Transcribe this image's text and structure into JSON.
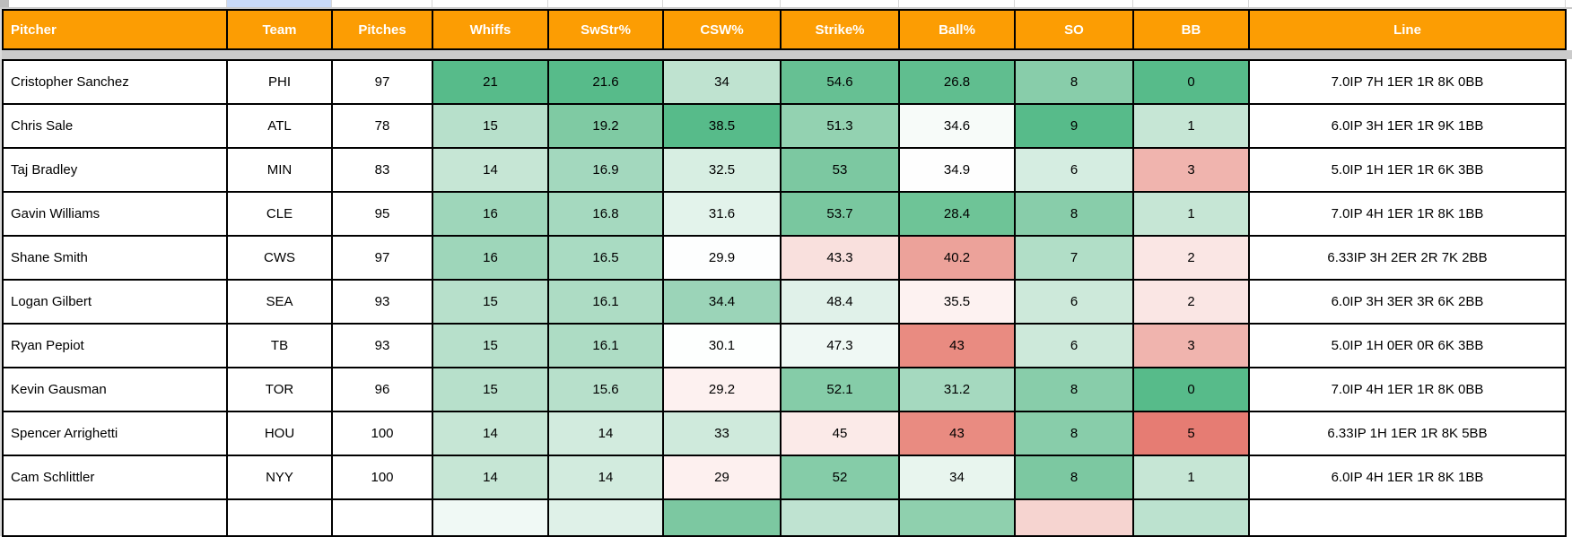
{
  "colors": {
    "header_bg": "#FC9D03",
    "header_text": "#FFFFFF",
    "grid": "#000000",
    "frozen_divider": "#CBCBCB",
    "strip_highlight_blue": "#C9DAF8",
    "strip_line": "#D6D6D6",
    "strip_corner": "#BDBDBD",
    "scale_max_green": "#57BB8A",
    "scale_mid_white": "#FFFFFF",
    "scale_min_red": "#E67C73"
  },
  "table": {
    "columns": [
      "Pitcher",
      "Team",
      "Pitches",
      "Whiffs",
      "SwStr%",
      "CSW%",
      "Strike%",
      "Ball%",
      "SO",
      "BB",
      "Line"
    ],
    "widths": [
      250,
      117,
      112,
      129,
      128,
      131,
      132,
      129,
      132,
      129,
      353
    ],
    "rows": [
      {
        "cells": [
          {
            "v": "Cristopher Sanchez",
            "bg": "#FFFFFF"
          },
          {
            "v": "PHI",
            "bg": "#FFFFFF"
          },
          {
            "v": "97",
            "bg": "#FFFFFF"
          },
          {
            "v": "21",
            "bg": "#57BB8A"
          },
          {
            "v": "21.6",
            "bg": "#57BB8A"
          },
          {
            "v": "34",
            "bg": "#BFE3D0"
          },
          {
            "v": "54.6",
            "bg": "#66C093"
          },
          {
            "v": "26.8",
            "bg": "#60BE8F"
          },
          {
            "v": "8",
            "bg": "#88CDAA"
          },
          {
            "v": "0",
            "bg": "#57BB8A"
          },
          {
            "v": "7.0IP 7H 1ER 1R 8K 0BB",
            "bg": "#FFFFFF"
          }
        ]
      },
      {
        "cells": [
          {
            "v": "Chris Sale",
            "bg": "#FFFFFF"
          },
          {
            "v": "ATL",
            "bg": "#FFFFFF"
          },
          {
            "v": "78",
            "bg": "#FFFFFF"
          },
          {
            "v": "15",
            "bg": "#B7E0CB"
          },
          {
            "v": "19.2",
            "bg": "#7FCAA3"
          },
          {
            "v": "38.5",
            "bg": "#57BB8A"
          },
          {
            "v": "51.3",
            "bg": "#93D2B1"
          },
          {
            "v": "34.6",
            "bg": "#F7FBF9"
          },
          {
            "v": "9",
            "bg": "#57BB8A"
          },
          {
            "v": "1",
            "bg": "#C6E6D5"
          },
          {
            "v": "6.0IP 3H 1ER 1R 9K 1BB",
            "bg": "#FFFFFF"
          }
        ]
      },
      {
        "cells": [
          {
            "v": "Taj Bradley",
            "bg": "#FFFFFF"
          },
          {
            "v": "MIN",
            "bg": "#FFFFFF"
          },
          {
            "v": "83",
            "bg": "#FFFFFF"
          },
          {
            "v": "14",
            "bg": "#C6E6D5"
          },
          {
            "v": "16.9",
            "bg": "#A3D8BE"
          },
          {
            "v": "32.5",
            "bg": "#D7EEE2"
          },
          {
            "v": "53",
            "bg": "#7CC8A1"
          },
          {
            "v": "34.9",
            "bg": "#FEFEFE"
          },
          {
            "v": "6",
            "bg": "#D5EDE1"
          },
          {
            "v": "3",
            "bg": "#F0B4AE"
          },
          {
            "v": "5.0IP 1H 1ER 1R 6K 3BB",
            "bg": "#FFFFFF"
          }
        ]
      },
      {
        "cells": [
          {
            "v": "Gavin Williams",
            "bg": "#FFFFFF"
          },
          {
            "v": "CLE",
            "bg": "#FFFFFF"
          },
          {
            "v": "95",
            "bg": "#FFFFFF"
          },
          {
            "v": "16",
            "bg": "#9ED6BA"
          },
          {
            "v": "16.8",
            "bg": "#A5D9BF"
          },
          {
            "v": "31.6",
            "bg": "#E3F3EB"
          },
          {
            "v": "53.7",
            "bg": "#79C79F"
          },
          {
            "v": "28.4",
            "bg": "#6EC497"
          },
          {
            "v": "8",
            "bg": "#88CDAA"
          },
          {
            "v": "1",
            "bg": "#C6E6D5"
          },
          {
            "v": "7.0IP 4H 1ER 1R 8K 1BB",
            "bg": "#FFFFFF"
          }
        ]
      },
      {
        "cells": [
          {
            "v": "Shane Smith",
            "bg": "#FFFFFF"
          },
          {
            "v": "CWS",
            "bg": "#FFFFFF"
          },
          {
            "v": "97",
            "bg": "#FFFFFF"
          },
          {
            "v": "16",
            "bg": "#9ED6BA"
          },
          {
            "v": "16.5",
            "bg": "#A9DBC2"
          },
          {
            "v": "29.9",
            "bg": "#FDFEFE"
          },
          {
            "v": "43.3",
            "bg": "#F9E0DD"
          },
          {
            "v": "40.2",
            "bg": "#ECA29A"
          },
          {
            "v": "7",
            "bg": "#B1DEC7"
          },
          {
            "v": "2",
            "bg": "#FAE6E4"
          },
          {
            "v": "6.33IP 3H 2ER 2R 7K 2BB",
            "bg": "#FFFFFF"
          }
        ]
      },
      {
        "cells": [
          {
            "v": "Logan Gilbert",
            "bg": "#FFFFFF"
          },
          {
            "v": "SEA",
            "bg": "#FFFFFF"
          },
          {
            "v": "93",
            "bg": "#FFFFFF"
          },
          {
            "v": "15",
            "bg": "#B7E0CB"
          },
          {
            "v": "16.1",
            "bg": "#ADDCC4"
          },
          {
            "v": "34.4",
            "bg": "#9BD4B8"
          },
          {
            "v": "48.4",
            "bg": "#E0F1E9"
          },
          {
            "v": "35.5",
            "bg": "#FDF2F1"
          },
          {
            "v": "6",
            "bg": "#CDE9DA"
          },
          {
            "v": "2",
            "bg": "#FAE6E4"
          },
          {
            "v": "6.0IP 3H 3ER 3R 6K 2BB",
            "bg": "#FFFFFF"
          }
        ]
      },
      {
        "cells": [
          {
            "v": "Ryan Pepiot",
            "bg": "#FFFFFF"
          },
          {
            "v": "TB",
            "bg": "#FFFFFF"
          },
          {
            "v": "93",
            "bg": "#FFFFFF"
          },
          {
            "v": "15",
            "bg": "#B7E0CB"
          },
          {
            "v": "16.1",
            "bg": "#ADDCC4"
          },
          {
            "v": "30.1",
            "bg": "#FDFFFE"
          },
          {
            "v": "47.3",
            "bg": "#EFF8F4"
          },
          {
            "v": "43",
            "bg": "#E98B81"
          },
          {
            "v": "6",
            "bg": "#CDE9DA"
          },
          {
            "v": "3",
            "bg": "#F0B4AE"
          },
          {
            "v": "5.0IP 1H 0ER 0R 6K 3BB",
            "bg": "#FFFFFF"
          }
        ]
      },
      {
        "cells": [
          {
            "v": "Kevin Gausman",
            "bg": "#FFFFFF"
          },
          {
            "v": "TOR",
            "bg": "#FFFFFF"
          },
          {
            "v": "96",
            "bg": "#FFFFFF"
          },
          {
            "v": "15",
            "bg": "#B7E0CB"
          },
          {
            "v": "15.6",
            "bg": "#B7E0CB"
          },
          {
            "v": "29.2",
            "bg": "#FDF1F0"
          },
          {
            "v": "52.1",
            "bg": "#85CCA8"
          },
          {
            "v": "31.2",
            "bg": "#A5D9BF"
          },
          {
            "v": "8",
            "bg": "#88CDAA"
          },
          {
            "v": "0",
            "bg": "#57BB8A"
          },
          {
            "v": "7.0IP 4H 1ER 1R 8K 0BB",
            "bg": "#FFFFFF"
          }
        ]
      },
      {
        "cells": [
          {
            "v": "Spencer Arrighetti",
            "bg": "#FFFFFF"
          },
          {
            "v": "HOU",
            "bg": "#FFFFFF"
          },
          {
            "v": "100",
            "bg": "#FFFFFF"
          },
          {
            "v": "14",
            "bg": "#C6E6D5"
          },
          {
            "v": "14",
            "bg": "#D2EBDE"
          },
          {
            "v": "33",
            "bg": "#CFEADC"
          },
          {
            "v": "45",
            "bg": "#FBEAE8"
          },
          {
            "v": "43",
            "bg": "#E98B81"
          },
          {
            "v": "8",
            "bg": "#88CDAA"
          },
          {
            "v": "5",
            "bg": "#E67C73"
          },
          {
            "v": "6.33IP 1H 1ER 1R 8K 5BB",
            "bg": "#FFFFFF"
          }
        ]
      },
      {
        "cells": [
          {
            "v": "Cam Schlittler",
            "bg": "#FFFFFF"
          },
          {
            "v": "NYY",
            "bg": "#FFFFFF"
          },
          {
            "v": "100",
            "bg": "#FFFFFF"
          },
          {
            "v": "14",
            "bg": "#C6E6D5"
          },
          {
            "v": "14",
            "bg": "#D2EBDE"
          },
          {
            "v": "29",
            "bg": "#FDF0EF"
          },
          {
            "v": "52",
            "bg": "#85CCA8"
          },
          {
            "v": "34",
            "bg": "#E8F5EE"
          },
          {
            "v": "8",
            "bg": "#7CC8A1"
          },
          {
            "v": "1",
            "bg": "#C6E6D5"
          },
          {
            "v": "6.0IP 4H 1ER 1R 8K 1BB",
            "bg": "#FFFFFF"
          }
        ]
      }
    ],
    "partial_row_colors": [
      "#FFFFFF",
      "#FFFFFF",
      "#FFFFFF",
      "#F0F9F5",
      "#DFF1E8",
      "#7CC8A1",
      "#BFE3D1",
      "#8FD0AE",
      "#F6D4D0",
      "#BCE2CF",
      "#FFFFFF"
    ]
  }
}
